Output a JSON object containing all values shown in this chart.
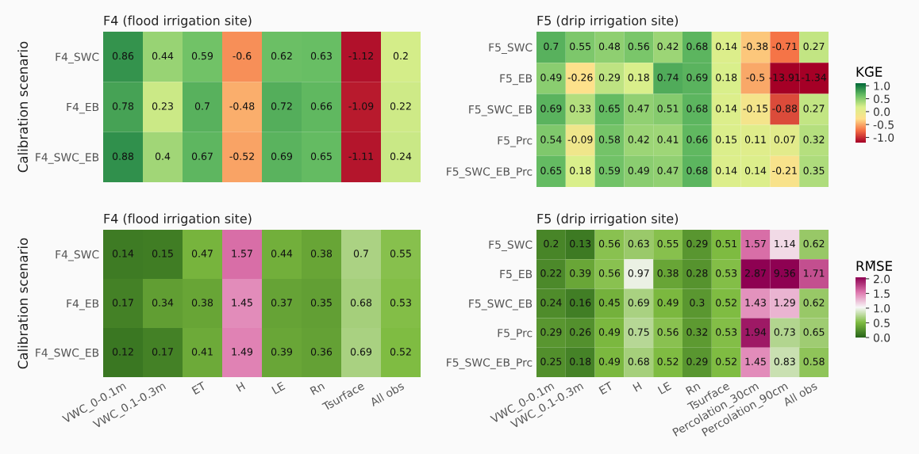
{
  "chart_data": [
    {
      "type": "heatmap",
      "title": "F4 (flood irrigation site)",
      "ylabel": "Calibration scenario",
      "tick_labels": "y",
      "data_labels": true,
      "categories": [
        null,
        null,
        null,
        null,
        null,
        null,
        null,
        null
      ],
      "y_categories": [
        "F4_SWC",
        "F4_EB",
        "F4_SWC_EB"
      ],
      "cells": [
        [
          0.86,
          0.44,
          0.59,
          -0.6,
          0.62,
          0.63,
          -1.12,
          0.2
        ],
        [
          0.78,
          0.23,
          0.7,
          -0.48,
          0.72,
          0.66,
          -1.09,
          0.22
        ],
        [
          0.88,
          0.4,
          0.67,
          -0.52,
          0.69,
          0.65,
          -1.11,
          0.24
        ]
      ],
      "colors": [
        "#a50026",
        "#f46d43",
        "#fee08b",
        "#d9ef8b",
        "#66bd63",
        "#006837"
      ]
    },
    {
      "type": "heatmap",
      "title": "F5 (drip irrigation site)",
      "tick_labels": "y",
      "data_labels": true,
      "clabel": "KG̃E",
      "categories": [
        null,
        null,
        null,
        null,
        null,
        null,
        null,
        null,
        null,
        null
      ],
      "y_categories": [
        "F5_SWC",
        "F5_EB",
        "F5_SWC_EB",
        "F5_Prc",
        "F5_SWC_EB_Prc"
      ],
      "cells": [
        [
          0.7,
          0.55,
          0.48,
          0.56,
          0.42,
          0.68,
          0.14,
          -0.38,
          -0.71,
          0.27
        ],
        [
          0.49,
          -0.26,
          0.29,
          0.18,
          0.74,
          0.69,
          0.18,
          -0.5,
          -13.91,
          -1.34
        ],
        [
          0.69,
          0.33,
          0.65,
          0.47,
          0.51,
          0.68,
          0.14,
          -0.15,
          -0.88,
          0.27
        ],
        [
          0.54,
          -0.09,
          0.58,
          0.42,
          0.41,
          0.66,
          0.15,
          0.11,
          0.07,
          0.32
        ],
        [
          0.65,
          0.18,
          0.59,
          0.49,
          0.47,
          0.68,
          0.14,
          0.14,
          -0.21,
          0.35
        ]
      ],
      "clim": [
        -1.2,
        1.1
      ],
      "cticks": [
        {
          "value": -1,
          "label": "-1.0"
        },
        -0.5,
        {
          "value": 0,
          "label": "0.0"
        },
        0.5,
        {
          "value": 1,
          "label": "1.0"
        }
      ],
      "colors": [
        "#a50026",
        "#f46d43",
        "#fee08b",
        "#d9ef8b",
        "#66bd63",
        "#006837"
      ]
    },
    {
      "type": "heatmap",
      "title": "F4 (flood irrigation site)",
      "ylabel": "Calibration scenario",
      "data_labels": true,
      "categories": [
        "VWC_0-0.1m",
        "VWC_0.1-0.3m",
        "ET",
        "H",
        "LE",
        "Rn",
        "Tsurface",
        "All obs"
      ],
      "y_categories": [
        "F4_SWC",
        "F4_EB",
        "F4_SWC_EB"
      ],
      "cells": [
        [
          0.14,
          0.15,
          0.47,
          1.57,
          0.44,
          0.38,
          0.7,
          0.55
        ],
        [
          0.17,
          0.34,
          0.38,
          1.45,
          0.37,
          0.35,
          0.68,
          0.53
        ],
        [
          0.12,
          0.17,
          0.41,
          1.49,
          0.39,
          0.36,
          0.69,
          0.52
        ]
      ],
      "colors": [
        "#276419",
        "#7fbc41",
        "#f7f7f7",
        "#de77ae",
        "#8e0152"
      ]
    },
    {
      "type": "heatmap",
      "title": "F5 (drip irrigation site)",
      "data_labels": true,
      "clabel": "RM̃SE",
      "categories": [
        "VWC_0-0.1m",
        "VWC_0.1-0.3m",
        "ET",
        "H",
        "LE",
        "Rn",
        "Tsurface",
        "Percolation_30cm",
        "Percolation_90cm",
        "All obs"
      ],
      "y_categories": [
        "F5_SWC",
        "F5_EB",
        "F5_SWC_EB",
        "F5_Prc",
        "F5_SWC_EB_Prc"
      ],
      "cells": [
        [
          0.2,
          0.13,
          0.56,
          0.63,
          0.55,
          0.29,
          0.51,
          1.57,
          1.14,
          0.62
        ],
        [
          0.22,
          0.39,
          0.56,
          0.97,
          0.38,
          0.28,
          0.53,
          2.87,
          9.36,
          1.71
        ],
        [
          0.24,
          0.16,
          0.45,
          0.69,
          0.49,
          0.3,
          0.52,
          1.43,
          1.29,
          0.62
        ],
        [
          0.29,
          0.26,
          0.49,
          0.75,
          0.56,
          0.32,
          0.53,
          1.94,
          0.73,
          0.65
        ],
        [
          0.25,
          0.18,
          0.49,
          0.68,
          0.52,
          0.29,
          0.52,
          1.45,
          0.83,
          0.58
        ]
      ],
      "clim": [
        0,
        2.05
      ],
      "cticks": [
        {
          "value": 0,
          "label": "0.0"
        },
        0.5,
        {
          "value": 1,
          "label": "1.0"
        },
        1.5,
        {
          "value": 2,
          "label": "2.0"
        }
      ],
      "colors": [
        "#276419",
        "#7fbc41",
        "#f7f7f7",
        "#de77ae",
        "#8e0152"
      ]
    }
  ]
}
